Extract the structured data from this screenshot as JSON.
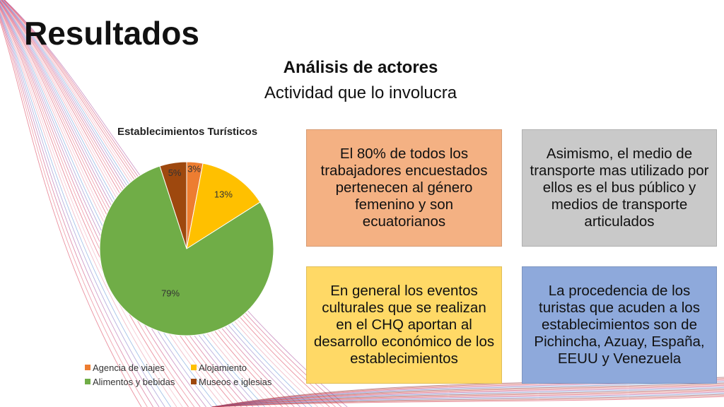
{
  "slide": {
    "title": "Resultados",
    "subtitle": "Análisis de actores",
    "subtitle2": "Actividad que lo involucra"
  },
  "chart_data": {
    "type": "pie",
    "title": "Establecimientos Turísticos",
    "categories": [
      "Agencia de viajes",
      "Alojamiento",
      "Alimentos y bebidas",
      "Museos e iglesias"
    ],
    "values": [
      3,
      13,
      79,
      5
    ],
    "labels": [
      "3%",
      "13%",
      "79%",
      "5%"
    ],
    "colors": [
      "#ED7D31",
      "#FFC000",
      "#70AD47",
      "#9E480E"
    ],
    "legend_position": "bottom"
  },
  "boxes": [
    {
      "text": "El 80% de todos los trabajadores encuestados pertenecen al género femenino  y son ecuatorianos",
      "color": "#F4B183"
    },
    {
      "text": "Asimismo, el medio de transporte mas utilizado por ellos es el bus público y medios de transporte articulados",
      "color": "#C9C9C9"
    },
    {
      "text": "En general los eventos culturales que se realizan en el CHQ aportan al desarrollo económico de los establecimientos",
      "color": "#FFD966"
    },
    {
      "text": "La  procedencia de los turistas que acuden a los establecimientos son de Pichincha, Azuay, España, EEUU  y Venezuela",
      "color": "#8EA9DB"
    }
  ]
}
